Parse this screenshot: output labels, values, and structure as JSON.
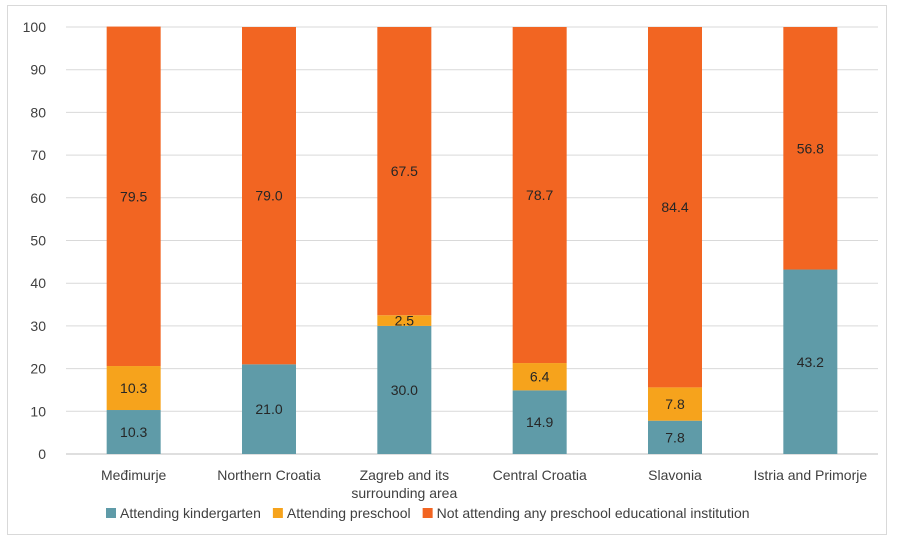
{
  "chart_data": {
    "type": "bar",
    "stacked": true,
    "title": "",
    "xlabel": "",
    "ylabel": "",
    "ylim": [
      0,
      100
    ],
    "yticks": [
      0,
      10,
      20,
      30,
      40,
      50,
      60,
      70,
      80,
      90,
      100
    ],
    "grid": true,
    "legend_position": "bottom",
    "categories": [
      "Međimurje",
      "Northern Croatia",
      "Zagreb and its surrounding area",
      "Central Croatia",
      "Slavonia",
      "Istria and Primorje"
    ],
    "category_lines": [
      [
        "Međimurje"
      ],
      [
        "Northern Croatia"
      ],
      [
        "Zagreb and its",
        "surrounding area"
      ],
      [
        "Central Croatia"
      ],
      [
        "Slavonia"
      ],
      [
        "Istria and Primorje"
      ]
    ],
    "series": [
      {
        "name": "Attending kindergarten",
        "color": "#5f9ba8",
        "values": [
          10.3,
          21.0,
          30.0,
          14.9,
          7.8,
          43.2
        ]
      },
      {
        "name": "Attending preschool",
        "color": "#f6a31c",
        "values": [
          10.3,
          0,
          2.5,
          6.4,
          7.8,
          0
        ]
      },
      {
        "name": "Not attending any preschool educational institution",
        "color": "#f26522",
        "values": [
          79.5,
          79.0,
          67.5,
          78.7,
          84.4,
          56.8
        ]
      }
    ]
  }
}
